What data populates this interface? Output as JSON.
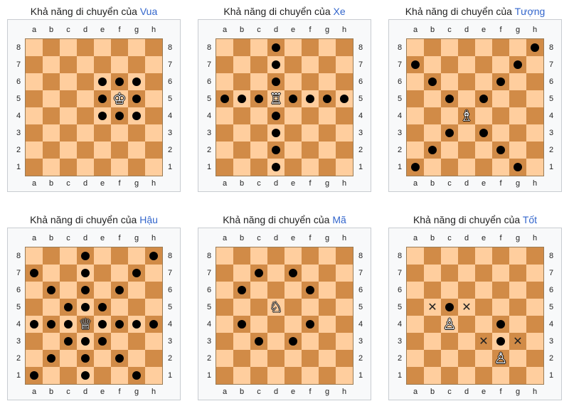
{
  "title_prefix": "Khả năng di chuyển của",
  "files": [
    "a",
    "b",
    "c",
    "d",
    "e",
    "f",
    "g",
    "h"
  ],
  "ranks": [
    "8",
    "7",
    "6",
    "5",
    "4",
    "3",
    "2",
    "1"
  ],
  "colors": {
    "light": "#ffce9e",
    "dark": "#d18b47",
    "link": "#3366cc"
  },
  "panels": [
    {
      "id": "king",
      "name": "Vua",
      "piece_icon": "white-king-icon",
      "pieces": [
        {
          "sq": "f5",
          "glyph": "♔"
        }
      ],
      "dots": [
        "e6",
        "f6",
        "g6",
        "e5",
        "g5",
        "e4",
        "f4",
        "g4"
      ],
      "crosses": []
    },
    {
      "id": "rook",
      "name": "Xe",
      "piece_icon": "white-rook-icon",
      "pieces": [
        {
          "sq": "d5",
          "glyph": "♖"
        }
      ],
      "dots": [
        "d8",
        "d7",
        "d6",
        "a5",
        "b5",
        "c5",
        "e5",
        "f5",
        "g5",
        "h5",
        "d4",
        "d3",
        "d2",
        "d1"
      ],
      "crosses": []
    },
    {
      "id": "bishop",
      "name": "Tượng",
      "piece_icon": "white-bishop-icon",
      "pieces": [
        {
          "sq": "d4",
          "glyph": "♗"
        }
      ],
      "dots": [
        "h8",
        "a7",
        "g7",
        "b6",
        "f6",
        "c5",
        "e5",
        "c3",
        "e3",
        "b2",
        "f2",
        "a1",
        "g1"
      ],
      "crosses": []
    },
    {
      "id": "queen",
      "name": "Hậu",
      "piece_icon": "white-queen-icon",
      "pieces": [
        {
          "sq": "d4",
          "glyph": "♕"
        }
      ],
      "dots": [
        "d8",
        "h8",
        "a7",
        "d7",
        "g7",
        "b6",
        "d6",
        "f6",
        "c5",
        "d5",
        "e5",
        "a4",
        "b4",
        "c4",
        "e4",
        "f4",
        "g4",
        "h4",
        "c3",
        "d3",
        "e3",
        "b2",
        "d2",
        "f2",
        "a1",
        "d1",
        "g1"
      ],
      "crosses": []
    },
    {
      "id": "knight",
      "name": "Mã",
      "piece_icon": "white-knight-icon",
      "pieces": [
        {
          "sq": "d5",
          "glyph": "♘"
        }
      ],
      "dots": [
        "c7",
        "e7",
        "b6",
        "f6",
        "b4",
        "f4",
        "c3",
        "e3"
      ],
      "crosses": []
    },
    {
      "id": "pawn",
      "name": "Tốt",
      "piece_icon": "white-pawn-icon",
      "pieces": [
        {
          "sq": "c4",
          "glyph": "♙"
        },
        {
          "sq": "f2",
          "glyph": "♙"
        }
      ],
      "dots": [
        "c5",
        "f4",
        "f3"
      ],
      "crosses": [
        "b5",
        "d5",
        "e3",
        "g3"
      ]
    }
  ]
}
